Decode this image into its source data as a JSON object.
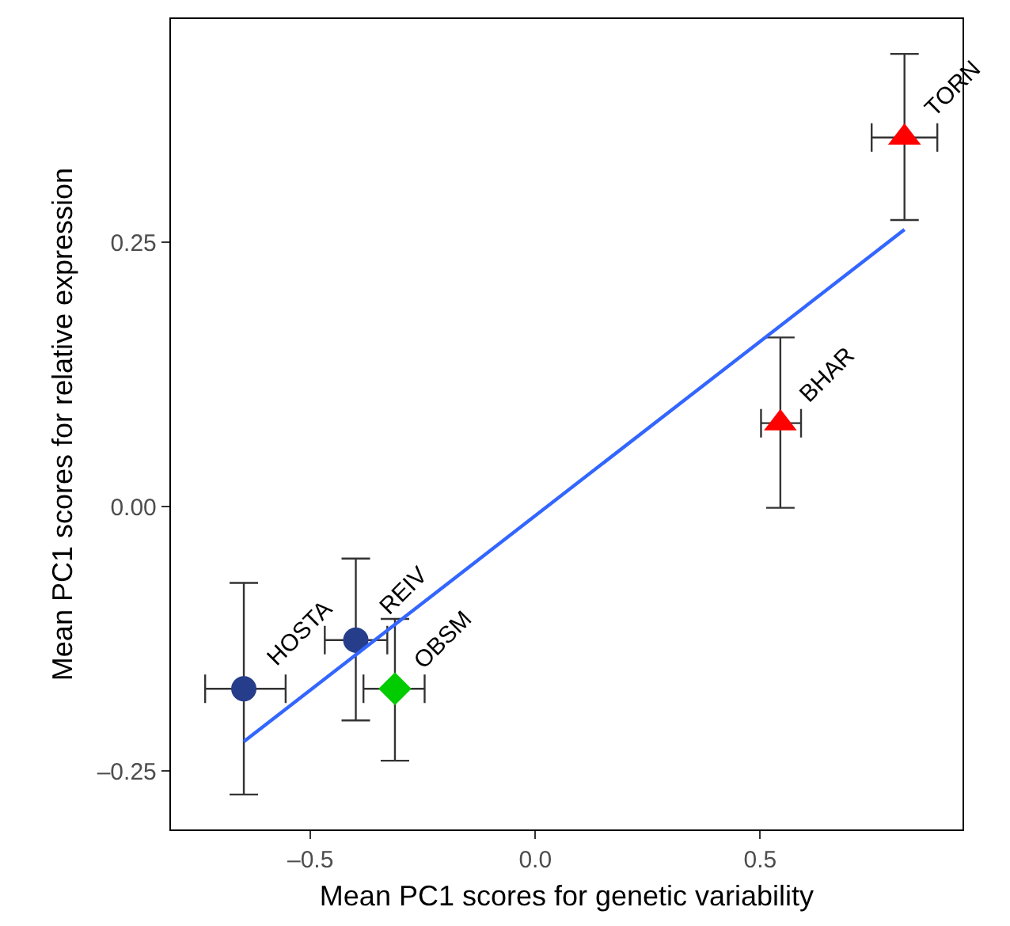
{
  "chart_data": {
    "type": "scatter",
    "xlabel": "Mean PC1 scores for genetic variability",
    "ylabel": "Mean PC1 scores for relative expression",
    "xlim": [
      -0.81,
      0.95
    ],
    "ylim": [
      -0.305,
      0.461
    ],
    "xticks": [
      {
        "value": -0.5,
        "label": "–0.5"
      },
      {
        "value": 0,
        "label": "0.0"
      },
      0.5
    ],
    "yticks": [
      {
        "value": -0.25,
        "label": "–0.25"
      },
      {
        "value": 0,
        "label": "0.00"
      },
      0.25
    ],
    "grid": false,
    "legend": false,
    "series": [
      {
        "name": "HOSTA",
        "color": "#253d8a",
        "marker": "circle",
        "x": [
          -0.648
        ],
        "values": [
          -0.172
        ],
        "errors": [
          [
            -0.272,
            -0.072
          ]
        ],
        "xerrors": [
          [
            -0.734,
            -0.555
          ]
        ]
      },
      {
        "name": "REIV",
        "color": "#253d8a",
        "marker": "circle",
        "x": [
          -0.399
        ],
        "values": [
          -0.126
        ],
        "errors": [
          [
            -0.202,
            -0.049
          ]
        ],
        "xerrors": [
          [
            -0.468,
            -0.329
          ]
        ]
      },
      {
        "name": "OBSM",
        "color": "#00cc00",
        "marker": "diamond",
        "x": [
          -0.312
        ],
        "values": [
          -0.172
        ],
        "errors": [
          [
            -0.24,
            -0.106
          ]
        ],
        "xerrors": [
          [
            -0.382,
            -0.246
          ]
        ]
      },
      {
        "name": "BHAR",
        "color": "#ff0000",
        "marker": "triangle",
        "x": [
          0.545
        ],
        "values": [
          0.079
        ],
        "errors": [
          [
            -0.001,
            0.16
          ]
        ],
        "xerrors": [
          [
            0.502,
            0.591
          ]
        ]
      },
      {
        "name": "TORN",
        "color": "#ff0000",
        "marker": "triangle",
        "x": [
          0.821
        ],
        "values": [
          0.349
        ],
        "errors": [
          [
            0.271,
            0.428
          ]
        ],
        "xerrors": [
          [
            0.748,
            0.894
          ]
        ]
      },
      {
        "type": "line",
        "color": "#3366ff",
        "x": [
          -0.648,
          0.821
        ],
        "values": [
          -0.222,
          0.262
        ]
      }
    ]
  }
}
